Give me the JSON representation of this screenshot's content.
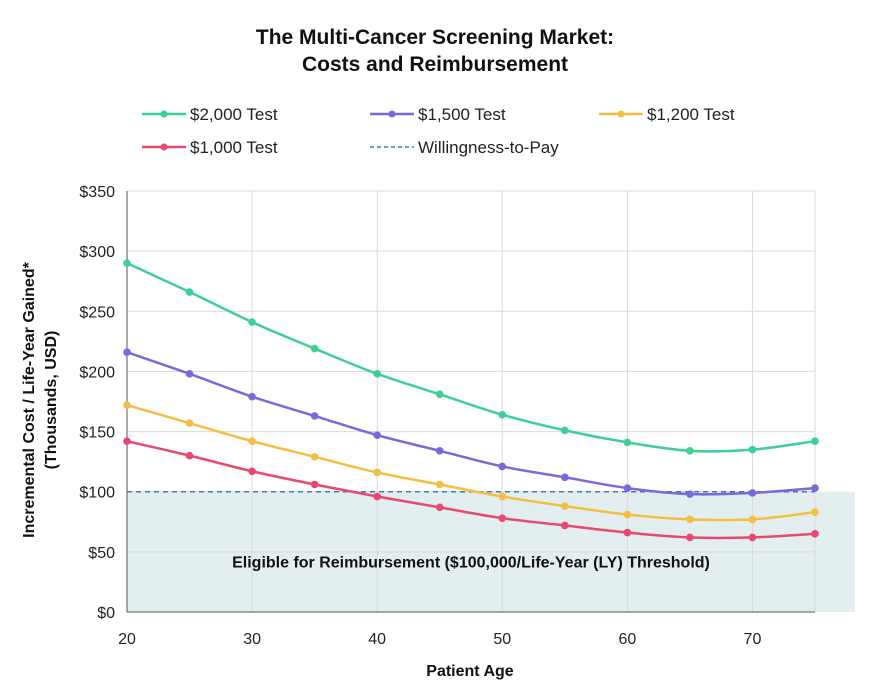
{
  "chart_data": {
    "type": "line",
    "title": [
      "The Multi-Cancer Screening Market:",
      "Costs and Reimbursement"
    ],
    "xlabel": "Patient Age",
    "ylabel": [
      "Incremental Cost / Life-Year Gained*",
      "(Thousands, USD)"
    ],
    "xlim": [
      20,
      75
    ],
    "ylim": [
      0,
      350
    ],
    "x_ticks": [
      20,
      30,
      40,
      50,
      60,
      70
    ],
    "y_ticks": [
      0,
      50,
      100,
      150,
      200,
      250,
      300,
      350
    ],
    "y_tick_labels": [
      "$0",
      "$50",
      "$100",
      "$150",
      "$200",
      "$250",
      "$300",
      "$350"
    ],
    "grid": true,
    "legend_position": "top",
    "x": [
      20,
      25,
      30,
      35,
      40,
      45,
      50,
      55,
      60,
      65,
      70,
      75
    ],
    "series": [
      {
        "name": "$2,000 Test",
        "color": "#3dcf93",
        "values": [
          290,
          266,
          241,
          219,
          198,
          181,
          164,
          151,
          141,
          134,
          135,
          142
        ]
      },
      {
        "name": "$1,500 Test",
        "color": "#7b68dc",
        "values": [
          216,
          198,
          179,
          163,
          147,
          134,
          121,
          112,
          103,
          98,
          99,
          103
        ]
      },
      {
        "name": "$1,200 Test",
        "color": "#f5be42",
        "values": [
          172,
          157,
          142,
          129,
          116,
          106,
          96,
          88,
          81,
          77,
          77,
          83
        ]
      },
      {
        "name": "$1,000 Test",
        "color": "#e94970",
        "values": [
          142,
          130,
          117,
          106,
          96,
          87,
          78,
          72,
          66,
          62,
          62,
          65
        ]
      }
    ],
    "reference_line": {
      "name": "Willingness-to-Pay",
      "value": 100,
      "color": "#3b7fa6",
      "style": "dashed"
    },
    "shaded_region": {
      "label": "Eligible for Reimbursement ($100,000/Life-Year (LY) Threshold)",
      "from": 0,
      "to": 100,
      "color": "#e3eef0"
    }
  }
}
